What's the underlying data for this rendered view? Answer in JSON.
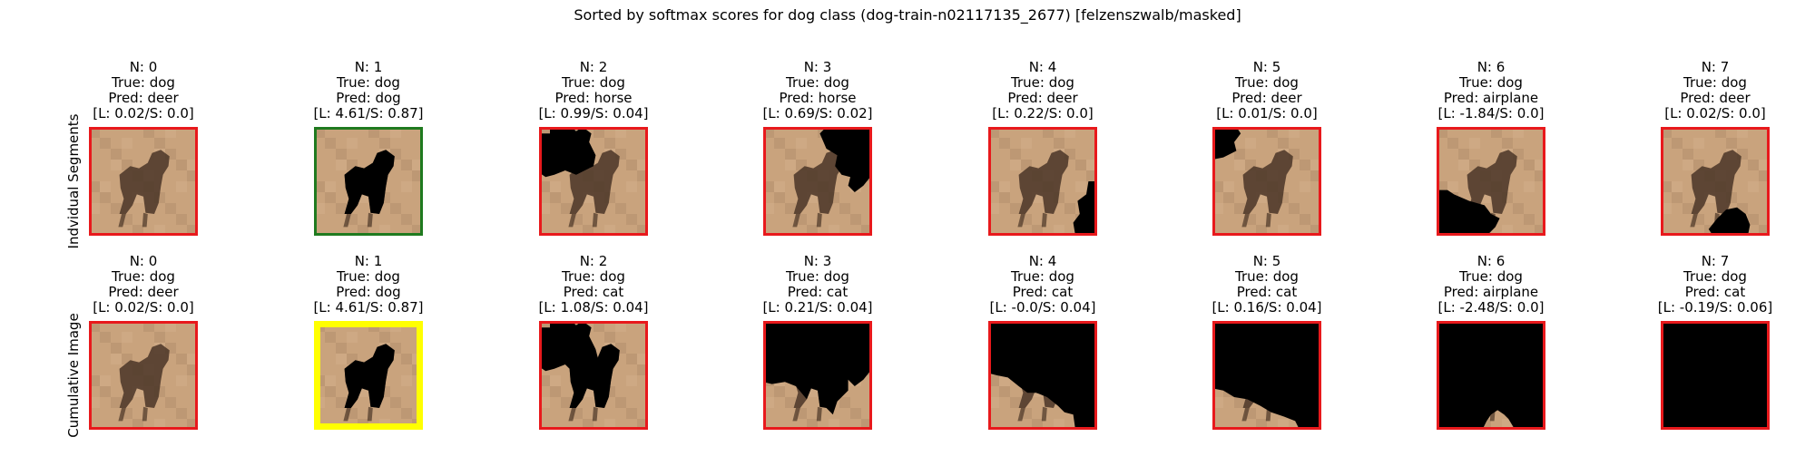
{
  "title": "Sorted by softmax scores for dog class (dog-train-n02117135_2677) [felzenszwalb/masked]",
  "colors": {
    "wrong": "#e8191c",
    "correct": "#1f7a1f",
    "selected": "#ffff00",
    "sand": "#c9a37d",
    "mask": "#000000",
    "animal": "#4a3527"
  },
  "rows": [
    {
      "label": "Indvidual Segments",
      "panels": [
        {
          "n": "N: 0",
          "true_label": "True: dog",
          "pred": "Pred: deer",
          "scores": "[L: 0.02/S: 0.0]",
          "border": "wrong",
          "mask": "none"
        },
        {
          "n": "N: 1",
          "true_label": "True: dog",
          "pred": "Pred: dog",
          "scores": "[L: 4.61/S: 0.87]",
          "border": "correct",
          "mask": "animal"
        },
        {
          "n": "N: 2",
          "true_label": "True: dog",
          "pred": "Pred: horse",
          "scores": "[L: 0.99/S: 0.04]",
          "border": "wrong",
          "mask": "top-left"
        },
        {
          "n": "N: 3",
          "true_label": "True: dog",
          "pred": "Pred: horse",
          "scores": "[L: 0.69/S: 0.02]",
          "border": "wrong",
          "mask": "top-right"
        },
        {
          "n": "N: 4",
          "true_label": "True: dog",
          "pred": "Pred: deer",
          "scores": "[L: 0.22/S: 0.0]",
          "border": "wrong",
          "mask": "right-bottom"
        },
        {
          "n": "N: 5",
          "true_label": "True: dog",
          "pred": "Pred: deer",
          "scores": "[L: 0.01/S: 0.0]",
          "border": "wrong",
          "mask": "corner-tl"
        },
        {
          "n": "N: 6",
          "true_label": "True: dog",
          "pred": "Pred: airplane",
          "scores": "[L: -1.84/S: 0.0]",
          "border": "wrong",
          "mask": "bottom-left"
        },
        {
          "n": "N: 7",
          "true_label": "True: dog",
          "pred": "Pred: deer",
          "scores": "[L: 0.02/S: 0.0]",
          "border": "wrong",
          "mask": "bottom-small"
        }
      ]
    },
    {
      "label": "Cumulative Image",
      "panels": [
        {
          "n": "N: 0",
          "true_label": "True: dog",
          "pred": "Pred: deer",
          "scores": "[L: 0.02/S: 0.0]",
          "border": "wrong",
          "mask": "none"
        },
        {
          "n": "N: 1",
          "true_label": "True: dog",
          "pred": "Pred: dog",
          "scores": "[L: 4.61/S: 0.87]",
          "border": "selected",
          "mask": "animal"
        },
        {
          "n": "N: 2",
          "true_label": "True: dog",
          "pred": "Pred: cat",
          "scores": "[L: 1.08/S: 0.04]",
          "border": "wrong",
          "mask": "cum2"
        },
        {
          "n": "N: 3",
          "true_label": "True: dog",
          "pred": "Pred: cat",
          "scores": "[L: 0.21/S: 0.04]",
          "border": "wrong",
          "mask": "cum3"
        },
        {
          "n": "N: 4",
          "true_label": "True: dog",
          "pred": "Pred: cat",
          "scores": "[L: -0.0/S: 0.04]",
          "border": "wrong",
          "mask": "cum4"
        },
        {
          "n": "N: 5",
          "true_label": "True: dog",
          "pred": "Pred: cat",
          "scores": "[L: 0.16/S: 0.04]",
          "border": "wrong",
          "mask": "cum5"
        },
        {
          "n": "N: 6",
          "true_label": "True: dog",
          "pred": "Pred: airplane",
          "scores": "[L: -2.48/S: 0.0]",
          "border": "wrong",
          "mask": "cum6"
        },
        {
          "n": "N: 7",
          "true_label": "True: dog",
          "pred": "Pred: cat",
          "scores": "[L: -0.19/S: 0.06]",
          "border": "wrong",
          "mask": "full"
        }
      ]
    }
  ]
}
